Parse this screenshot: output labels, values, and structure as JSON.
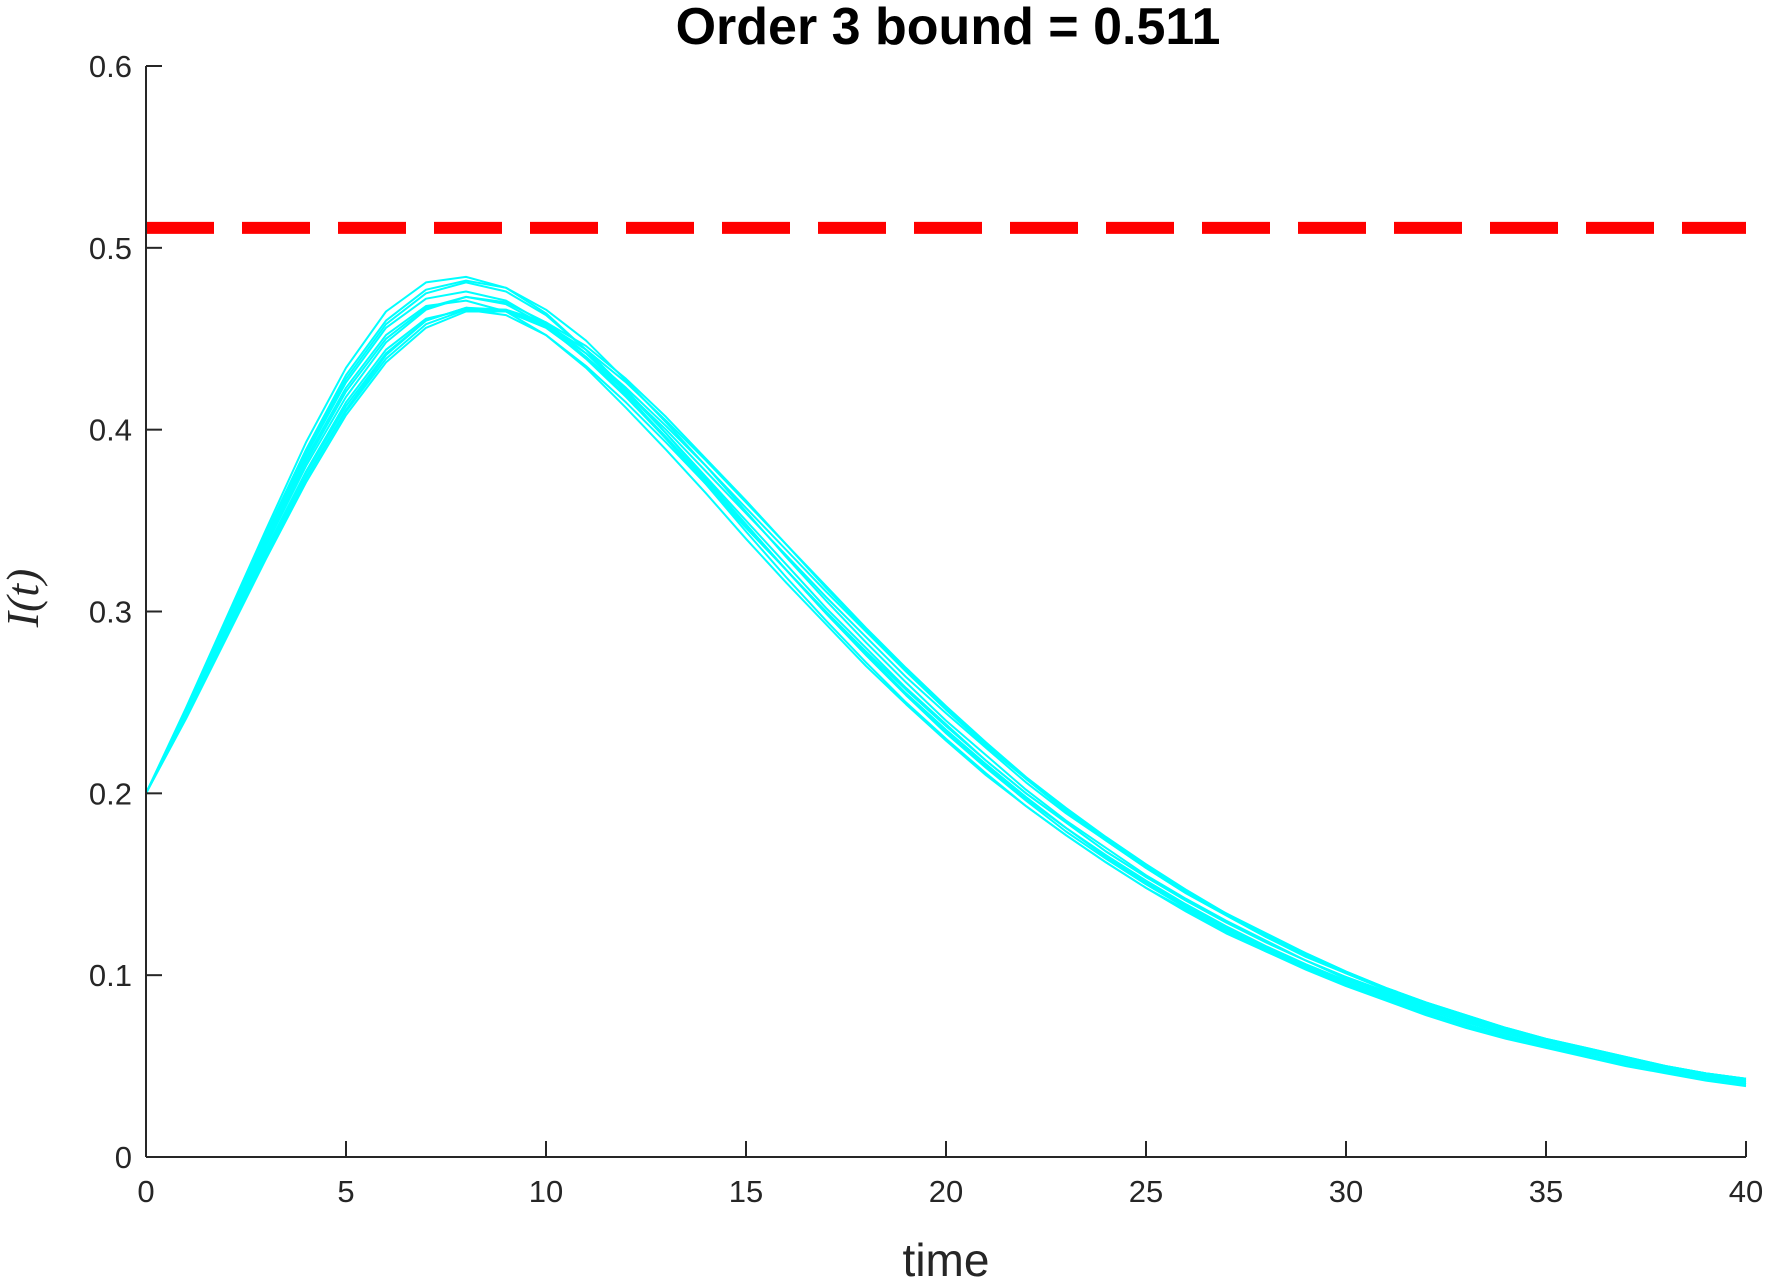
{
  "chart_data": {
    "type": "line",
    "title": "Order 3 bound = 0.511",
    "xlabel": "time",
    "ylabel": "I(t)",
    "xlim": [
      0,
      40
    ],
    "ylim": [
      0,
      0.6
    ],
    "xticks": [
      0,
      5,
      10,
      15,
      20,
      25,
      30,
      35,
      40
    ],
    "yticks": [
      0,
      0.1,
      0.2,
      0.3,
      0.4,
      0.5,
      0.6
    ],
    "xtick_labels": [
      "0",
      "5",
      "10",
      "15",
      "20",
      "25",
      "30",
      "35",
      "40"
    ],
    "ytick_labels": [
      "0",
      "0.1",
      "0.2",
      "0.3",
      "0.4",
      "0.5",
      "0.6"
    ],
    "grid": false,
    "bound": {
      "value": 0.511,
      "color": "#ff0000",
      "style": "dashed"
    },
    "trajectory_color": "#00ffff",
    "x": [
      0,
      1,
      2,
      3,
      4,
      5,
      6,
      7,
      8,
      9,
      10,
      11,
      12,
      13,
      14,
      15,
      16,
      17,
      18,
      19,
      20,
      21,
      22,
      23,
      24,
      25,
      26,
      27,
      28,
      29,
      30,
      31,
      32,
      33,
      34,
      35,
      36,
      37,
      38,
      39,
      40
    ],
    "series": [
      {
        "values": [
          0.2,
          0.244,
          0.29,
          0.336,
          0.38,
          0.418,
          0.448,
          0.466,
          0.473,
          0.469,
          0.457,
          0.439,
          0.418,
          0.395,
          0.371,
          0.347,
          0.323,
          0.299,
          0.277,
          0.255,
          0.235,
          0.216,
          0.198,
          0.181,
          0.166,
          0.152,
          0.139,
          0.127,
          0.116,
          0.106,
          0.097,
          0.089,
          0.081,
          0.074,
          0.068,
          0.062,
          0.057,
          0.053,
          0.049,
          0.045,
          0.042
        ]
      },
      {
        "values": [
          0.2,
          0.246,
          0.294,
          0.342,
          0.388,
          0.428,
          0.458,
          0.475,
          0.481,
          0.476,
          0.463,
          0.444,
          0.422,
          0.398,
          0.373,
          0.348,
          0.323,
          0.299,
          0.276,
          0.254,
          0.233,
          0.214,
          0.196,
          0.179,
          0.164,
          0.15,
          0.137,
          0.125,
          0.114,
          0.104,
          0.095,
          0.087,
          0.079,
          0.072,
          0.066,
          0.061,
          0.056,
          0.051,
          0.047,
          0.043,
          0.04
        ]
      },
      {
        "values": [
          0.2,
          0.242,
          0.287,
          0.332,
          0.374,
          0.411,
          0.441,
          0.46,
          0.467,
          0.465,
          0.456,
          0.44,
          0.421,
          0.4,
          0.377,
          0.354,
          0.331,
          0.308,
          0.286,
          0.264,
          0.244,
          0.225,
          0.206,
          0.189,
          0.174,
          0.159,
          0.145,
          0.133,
          0.121,
          0.111,
          0.101,
          0.092,
          0.084,
          0.077,
          0.07,
          0.064,
          0.059,
          0.054,
          0.05,
          0.046,
          0.043
        ]
      },
      {
        "values": [
          0.2,
          0.247,
          0.296,
          0.345,
          0.393,
          0.434,
          0.465,
          0.481,
          0.484,
          0.478,
          0.464,
          0.444,
          0.42,
          0.395,
          0.37,
          0.344,
          0.319,
          0.295,
          0.272,
          0.25,
          0.23,
          0.211,
          0.193,
          0.177,
          0.162,
          0.148,
          0.135,
          0.123,
          0.113,
          0.103,
          0.094,
          0.086,
          0.078,
          0.071,
          0.065,
          0.06,
          0.055,
          0.05,
          0.046,
          0.042,
          0.039
        ]
      },
      {
        "values": [
          0.2,
          0.243,
          0.289,
          0.334,
          0.377,
          0.415,
          0.444,
          0.461,
          0.466,
          0.463,
          0.452,
          0.435,
          0.415,
          0.393,
          0.37,
          0.346,
          0.323,
          0.3,
          0.278,
          0.257,
          0.237,
          0.218,
          0.2,
          0.184,
          0.168,
          0.154,
          0.141,
          0.129,
          0.118,
          0.108,
          0.099,
          0.091,
          0.083,
          0.076,
          0.07,
          0.064,
          0.058,
          0.054,
          0.049,
          0.045,
          0.042
        ]
      },
      {
        "values": [
          0.2,
          0.245,
          0.292,
          0.339,
          0.384,
          0.423,
          0.452,
          0.468,
          0.471,
          0.465,
          0.452,
          0.434,
          0.412,
          0.389,
          0.365,
          0.34,
          0.316,
          0.293,
          0.27,
          0.249,
          0.229,
          0.21,
          0.193,
          0.177,
          0.162,
          0.148,
          0.136,
          0.124,
          0.113,
          0.104,
          0.095,
          0.087,
          0.079,
          0.073,
          0.066,
          0.061,
          0.056,
          0.051,
          0.047,
          0.043,
          0.04
        ]
      },
      {
        "values": [
          0.2,
          0.241,
          0.285,
          0.329,
          0.371,
          0.408,
          0.437,
          0.456,
          0.465,
          0.465,
          0.458,
          0.444,
          0.426,
          0.405,
          0.383,
          0.36,
          0.337,
          0.314,
          0.291,
          0.269,
          0.248,
          0.228,
          0.209,
          0.192,
          0.176,
          0.161,
          0.147,
          0.134,
          0.123,
          0.112,
          0.102,
          0.093,
          0.085,
          0.078,
          0.071,
          0.065,
          0.06,
          0.055,
          0.05,
          0.046,
          0.043
        ]
      },
      {
        "values": [
          0.2,
          0.244,
          0.291,
          0.337,
          0.382,
          0.421,
          0.45,
          0.467,
          0.473,
          0.47,
          0.459,
          0.442,
          0.421,
          0.398,
          0.374,
          0.35,
          0.326,
          0.302,
          0.28,
          0.258,
          0.238,
          0.218,
          0.2,
          0.184,
          0.168,
          0.154,
          0.141,
          0.129,
          0.118,
          0.108,
          0.098,
          0.09,
          0.082,
          0.075,
          0.069,
          0.063,
          0.058,
          0.053,
          0.048,
          0.044,
          0.041
        ]
      },
      {
        "values": [
          0.2,
          0.246,
          0.295,
          0.343,
          0.389,
          0.43,
          0.46,
          0.477,
          0.482,
          0.478,
          0.466,
          0.449,
          0.427,
          0.404,
          0.38,
          0.355,
          0.33,
          0.306,
          0.283,
          0.261,
          0.24,
          0.221,
          0.202,
          0.185,
          0.17,
          0.155,
          0.142,
          0.13,
          0.119,
          0.108,
          0.099,
          0.09,
          0.083,
          0.076,
          0.069,
          0.063,
          0.058,
          0.053,
          0.049,
          0.045,
          0.041
        ]
      },
      {
        "values": [
          0.2,
          0.243,
          0.288,
          0.333,
          0.376,
          0.413,
          0.442,
          0.46,
          0.467,
          0.466,
          0.457,
          0.442,
          0.423,
          0.402,
          0.38,
          0.357,
          0.334,
          0.311,
          0.289,
          0.267,
          0.246,
          0.226,
          0.208,
          0.19,
          0.174,
          0.159,
          0.145,
          0.133,
          0.121,
          0.11,
          0.101,
          0.092,
          0.084,
          0.077,
          0.07,
          0.064,
          0.059,
          0.054,
          0.049,
          0.045,
          0.042
        ]
      },
      {
        "values": [
          0.2,
          0.245,
          0.293,
          0.34,
          0.386,
          0.426,
          0.456,
          0.472,
          0.476,
          0.471,
          0.458,
          0.44,
          0.419,
          0.396,
          0.372,
          0.347,
          0.323,
          0.299,
          0.276,
          0.254,
          0.234,
          0.215,
          0.197,
          0.181,
          0.165,
          0.151,
          0.138,
          0.126,
          0.115,
          0.105,
          0.096,
          0.088,
          0.08,
          0.073,
          0.067,
          0.061,
          0.056,
          0.052,
          0.047,
          0.044,
          0.04
        ]
      },
      {
        "values": [
          0.2,
          0.242,
          0.286,
          0.33,
          0.373,
          0.41,
          0.439,
          0.458,
          0.466,
          0.466,
          0.459,
          0.446,
          0.428,
          0.407,
          0.384,
          0.361,
          0.337,
          0.313,
          0.29,
          0.268,
          0.247,
          0.227,
          0.208,
          0.191,
          0.175,
          0.16,
          0.146,
          0.134,
          0.122,
          0.112,
          0.102,
          0.093,
          0.085,
          0.078,
          0.071,
          0.065,
          0.06,
          0.055,
          0.05,
          0.046,
          0.043
        ]
      }
    ]
  }
}
